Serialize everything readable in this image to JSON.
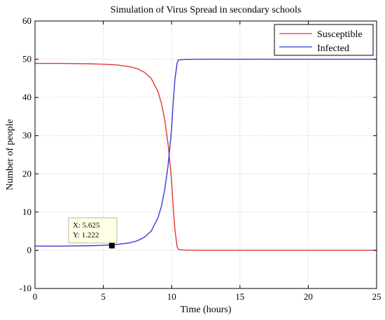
{
  "chart_data": {
    "type": "line",
    "title": "Simulation of Virus Spread in secondary schools",
    "xlabel": "Time (hours)",
    "ylabel": "Number of people",
    "xlim": [
      0,
      25
    ],
    "ylim": [
      -10,
      60
    ],
    "xticks": [
      0,
      5,
      10,
      15,
      20,
      25
    ],
    "yticks": [
      -10,
      0,
      10,
      20,
      30,
      40,
      50,
      60
    ],
    "grid": true,
    "legend_position": "top-right",
    "series": [
      {
        "name": "Susceptible",
        "color": "#e0383a",
        "x": [
          0,
          2,
          4,
          5,
          6,
          7,
          7.5,
          8,
          8.5,
          9,
          9.25,
          9.5,
          9.75,
          10,
          10.1,
          10.25,
          10.4,
          10.5,
          11,
          12,
          15,
          20,
          25
        ],
        "y": [
          48.9,
          48.9,
          48.8,
          48.7,
          48.5,
          48.0,
          47.5,
          46.6,
          45.0,
          41.5,
          38.5,
          34.0,
          27.5,
          18.0,
          12.0,
          5.0,
          1.0,
          0.2,
          0.05,
          0.0,
          0.0,
          0.0,
          0.0
        ]
      },
      {
        "name": "Infected",
        "color": "#3a3ad8",
        "x": [
          0,
          2,
          4,
          5,
          6,
          7,
          7.5,
          8,
          8.5,
          9,
          9.25,
          9.5,
          9.75,
          10,
          10.1,
          10.25,
          10.4,
          10.5,
          11,
          12,
          15,
          20,
          25
        ],
        "y": [
          1.1,
          1.1,
          1.2,
          1.3,
          1.5,
          2.0,
          2.5,
          3.4,
          5.0,
          8.5,
          11.5,
          16.0,
          22.5,
          32.0,
          38.0,
          45.0,
          49.0,
          49.8,
          49.95,
          50.0,
          50.0,
          50.0,
          50.0
        ]
      }
    ],
    "datatip": {
      "x": 5.625,
      "y": 1.222,
      "x_text": "X: 5.625",
      "y_text": "Y: 1.222"
    }
  }
}
